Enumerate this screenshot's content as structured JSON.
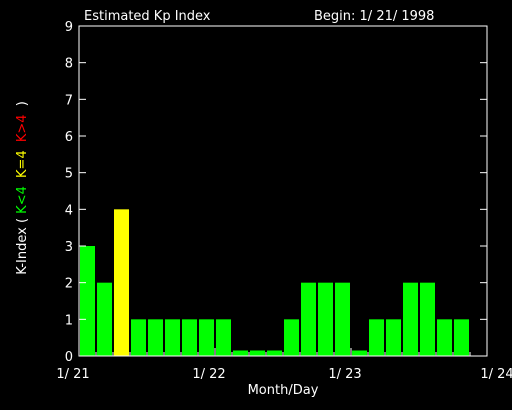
{
  "chart_data": {
    "type": "bar",
    "title": "Estimated Kp Index",
    "subtitle": "Begin: 1/ 21/ 1998",
    "xlabel": "Month/Day",
    "ylabel": {
      "prefix": "K-Index (",
      "low": "K<4",
      "mid": "K=4",
      "high": "K>4",
      "suffix": ")"
    },
    "ylim": [
      0,
      9
    ],
    "yticks": [
      0,
      1,
      2,
      3,
      4,
      5,
      6,
      7,
      8,
      9
    ],
    "x_range": [
      0,
      24
    ],
    "xticks": [
      {
        "value": 0,
        "label": "1/ 21"
      },
      {
        "value": 8,
        "label": "1/ 22"
      },
      {
        "value": 16,
        "label": "1/ 23"
      },
      {
        "value": 24,
        "label": "1/ 24"
      }
    ],
    "values": [
      3,
      2,
      4,
      1,
      1,
      1,
      1,
      1,
      1,
      0.15,
      0.15,
      0.15,
      1,
      2,
      2,
      2,
      0.15,
      1,
      1,
      2,
      2,
      1,
      1
    ],
    "colors": {
      "low": "#00ff00",
      "mid": "#ffff00",
      "high": "#ff0000",
      "axis": "#ffffff",
      "background": "#000000"
    }
  }
}
